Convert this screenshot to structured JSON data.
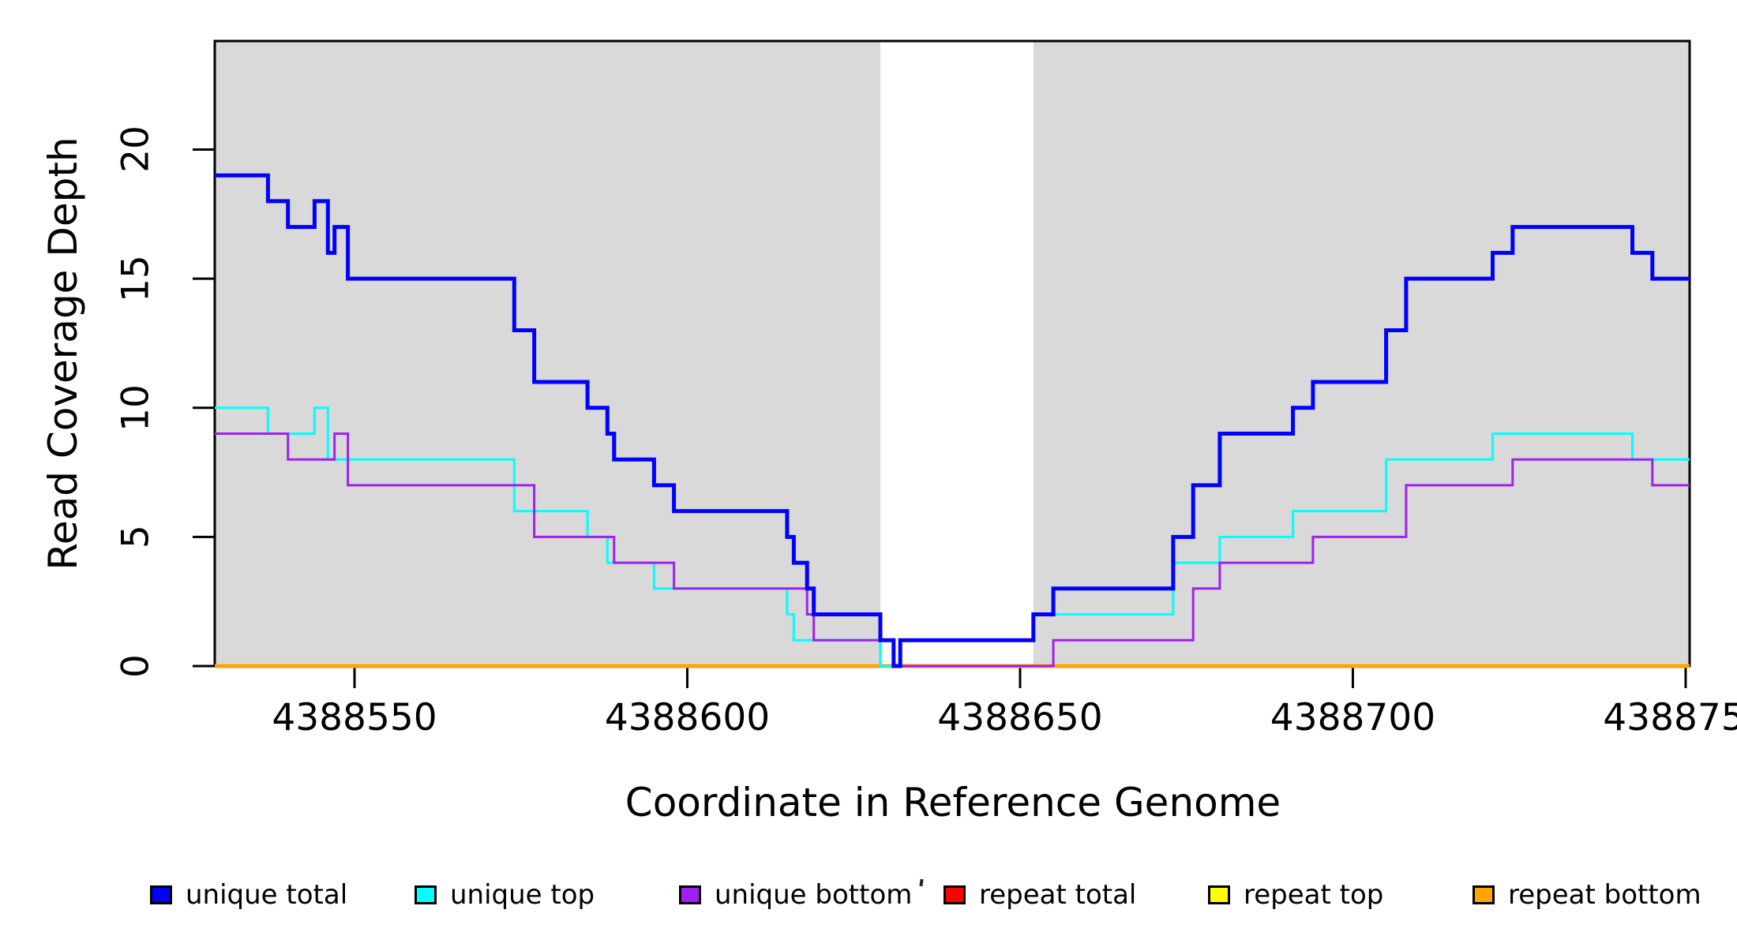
{
  "y_axis": {
    "title": "Read Coverage Depth",
    "tick_labels": [
      "0",
      "5",
      "10",
      "15",
      "20"
    ],
    "tick_values": [
      0,
      5,
      10,
      15,
      20
    ]
  },
  "x_axis": {
    "title": "Coordinate in Reference Genome",
    "tick_labels": [
      "4388550",
      "4388600",
      "4388650",
      "4388700",
      "4388750"
    ],
    "tick_values": [
      4388550,
      4388600,
      4388650,
      4388700,
      4388750
    ]
  },
  "legend": {
    "position": "bottom",
    "items": [
      {
        "label": "unique total",
        "color": "#0000ff"
      },
      {
        "label": "unique top",
        "color": "#00ffff"
      },
      {
        "label": "unique bottom",
        "color": "#a020f0"
      },
      {
        "label": "repeat total",
        "color": "#ff0000"
      },
      {
        "label": "repeat top",
        "color": "#ffff00"
      },
      {
        "label": "repeat bottom",
        "color": "#ffa500"
      }
    ]
  },
  "chart_data": {
    "type": "line",
    "subtype": "step",
    "title": "",
    "xlabel": "Coordinate in Reference Genome",
    "ylabel": "Read Coverage Depth",
    "xlim": [
      4388529,
      4388750.6
    ],
    "ylim": [
      0,
      24.2
    ],
    "grid": false,
    "panel_border_color": "#000000",
    "shaded_regions": [
      {
        "x0": 4388529,
        "x1": 4388629,
        "color": "#d9d9d9"
      },
      {
        "x0": 4388652,
        "x1": 4388750.6,
        "color": "#d9d9d9"
      }
    ],
    "series": [
      {
        "name": "unique total",
        "color": "#0000ff",
        "line_width": 5,
        "steps": [
          [
            4388529,
            19
          ],
          [
            4388537,
            18
          ],
          [
            4388540,
            17
          ],
          [
            4388544,
            18
          ],
          [
            4388546,
            16
          ],
          [
            4388547,
            17
          ],
          [
            4388549,
            15
          ],
          [
            4388574,
            13
          ],
          [
            4388577,
            11
          ],
          [
            4388585,
            10
          ],
          [
            4388588,
            9
          ],
          [
            4388589,
            8
          ],
          [
            4388595,
            7
          ],
          [
            4388598,
            6
          ],
          [
            4388615,
            5
          ],
          [
            4388616,
            4
          ],
          [
            4388618,
            3
          ],
          [
            4388619,
            2
          ],
          [
            4388629,
            1
          ],
          [
            4388631,
            0
          ],
          [
            4388632,
            1
          ],
          [
            4388652,
            2
          ],
          [
            4388655,
            3
          ],
          [
            4388673,
            5
          ],
          [
            4388676,
            7
          ],
          [
            4388680,
            9
          ],
          [
            4388691,
            10
          ],
          [
            4388694,
            11
          ],
          [
            4388705,
            13
          ],
          [
            4388708,
            15
          ],
          [
            4388721,
            16
          ],
          [
            4388724,
            17
          ],
          [
            4388742,
            16
          ],
          [
            4388745,
            15
          ]
        ]
      },
      {
        "name": "unique top",
        "color": "#00ffff",
        "line_width": 3,
        "steps": [
          [
            4388529,
            10
          ],
          [
            4388537,
            9
          ],
          [
            4388544,
            10
          ],
          [
            4388546,
            8
          ],
          [
            4388574,
            6
          ],
          [
            4388585,
            5
          ],
          [
            4388588,
            4
          ],
          [
            4388595,
            3
          ],
          [
            4388615,
            2
          ],
          [
            4388616,
            1
          ],
          [
            4388629,
            0
          ],
          [
            4388632,
            1
          ],
          [
            4388652,
            2
          ],
          [
            4388673,
            4
          ],
          [
            4388680,
            5
          ],
          [
            4388691,
            6
          ],
          [
            4388705,
            8
          ],
          [
            4388721,
            9
          ],
          [
            4388742,
            8
          ]
        ]
      },
      {
        "name": "unique bottom",
        "color": "#a020f0",
        "line_width": 3,
        "steps": [
          [
            4388529,
            9
          ],
          [
            4388540,
            8
          ],
          [
            4388547,
            9
          ],
          [
            4388549,
            7
          ],
          [
            4388577,
            5
          ],
          [
            4388589,
            4
          ],
          [
            4388598,
            3
          ],
          [
            4388618,
            2
          ],
          [
            4388619,
            1
          ],
          [
            4388631,
            0
          ],
          [
            4388655,
            1
          ],
          [
            4388676,
            3
          ],
          [
            4388680,
            4
          ],
          [
            4388694,
            5
          ],
          [
            4388708,
            7
          ],
          [
            4388724,
            8
          ],
          [
            4388745,
            7
          ]
        ]
      },
      {
        "name": "repeat total",
        "color": "#ff0000",
        "line_width": 3,
        "steps": [
          [
            4388529,
            0
          ]
        ]
      },
      {
        "name": "repeat top",
        "color": "#ffff00",
        "line_width": 3,
        "steps": [
          [
            4388529,
            0
          ]
        ]
      },
      {
        "name": "repeat bottom",
        "color": "#ffa500",
        "line_width": 5,
        "steps": [
          [
            4388529,
            0
          ]
        ]
      }
    ],
    "draw_order": [
      "repeat total",
      "repeat top",
      "repeat bottom",
      "unique top",
      "unique bottom",
      "unique total"
    ]
  }
}
